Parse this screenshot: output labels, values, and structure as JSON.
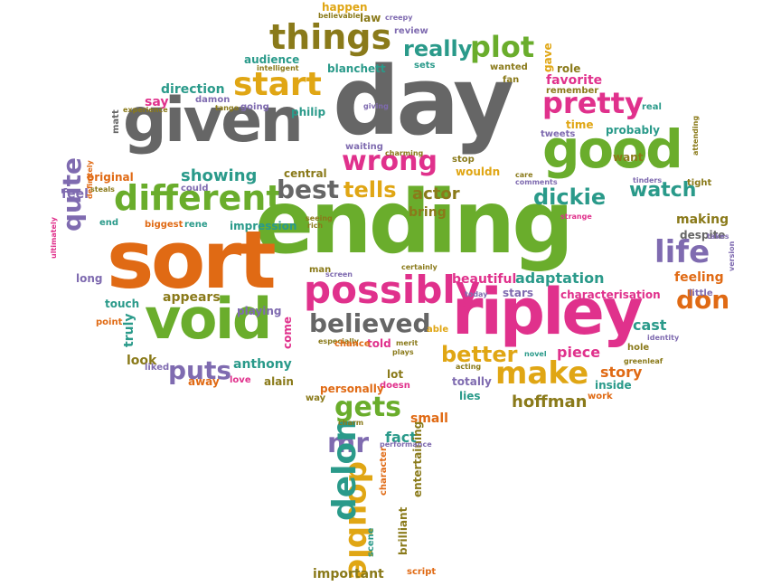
{
  "palette": {
    "grey": "#666666",
    "green": "#6aad2c",
    "orange": "#e06a14",
    "magenta": "#e0318c",
    "gold": "#e0a614",
    "teal": "#2a9a8a",
    "purple": "#7f6bb0",
    "olive": "#8a7a1a"
  },
  "words": [
    {
      "text": "day",
      "color": "grey"
    },
    {
      "text": "ending",
      "color": "green"
    },
    {
      "text": "sort",
      "color": "orange"
    },
    {
      "text": "given",
      "color": "grey"
    },
    {
      "text": "ripley",
      "color": "magenta"
    },
    {
      "text": "good",
      "color": "green"
    },
    {
      "text": "void",
      "color": "green"
    },
    {
      "text": "possibly",
      "color": "magenta"
    },
    {
      "text": "different",
      "color": "green"
    },
    {
      "text": "things",
      "color": "olive"
    },
    {
      "text": "start",
      "color": "gold"
    },
    {
      "text": "plot",
      "color": "green"
    },
    {
      "text": "really",
      "color": "teal"
    },
    {
      "text": "wrong",
      "color": "magenta"
    },
    {
      "text": "pretty",
      "color": "magenta"
    },
    {
      "text": "make",
      "color": "gold"
    },
    {
      "text": "believed",
      "color": "grey"
    },
    {
      "text": "life",
      "color": "purple"
    },
    {
      "text": "best",
      "color": "grey"
    },
    {
      "text": "tells",
      "color": "gold"
    },
    {
      "text": "dickie",
      "color": "teal"
    },
    {
      "text": "watch",
      "color": "teal"
    },
    {
      "text": "puts",
      "color": "purple"
    },
    {
      "text": "gets",
      "color": "green"
    },
    {
      "text": "mr",
      "color": "purple"
    },
    {
      "text": "double",
      "color": "gold"
    },
    {
      "text": "delon",
      "color": "teal"
    },
    {
      "text": "don",
      "color": "orange"
    },
    {
      "text": "better",
      "color": "gold"
    },
    {
      "text": "showing",
      "color": "teal"
    },
    {
      "text": "actor",
      "color": "olive"
    },
    {
      "text": "quite",
      "color": "purple"
    },
    {
      "text": "hoffman",
      "color": "olive"
    },
    {
      "text": "story",
      "color": "orange"
    },
    {
      "text": "adaptation",
      "color": "teal"
    },
    {
      "text": "beautiful",
      "color": "magenta"
    },
    {
      "text": "favorite",
      "color": "magenta"
    },
    {
      "text": "audience",
      "color": "teal"
    },
    {
      "text": "direction",
      "color": "teal"
    },
    {
      "text": "anthony",
      "color": "teal"
    },
    {
      "text": "cast",
      "color": "teal"
    },
    {
      "text": "piece",
      "color": "magenta"
    },
    {
      "text": "feeling",
      "color": "orange"
    },
    {
      "text": "making",
      "color": "olive"
    },
    {
      "text": "fact",
      "color": "teal"
    },
    {
      "text": "small",
      "color": "orange"
    },
    {
      "text": "appears",
      "color": "olive"
    },
    {
      "text": "feel",
      "color": "purple"
    },
    {
      "text": "bring",
      "color": "olive"
    },
    {
      "text": "happen",
      "color": "gold"
    },
    {
      "text": "wouldn",
      "color": "gold"
    },
    {
      "text": "important",
      "color": "olive"
    },
    {
      "text": "look",
      "color": "olive"
    },
    {
      "text": "say",
      "color": "magenta"
    },
    {
      "text": "damon",
      "color": "purple"
    },
    {
      "text": "blanchett",
      "color": "teal"
    },
    {
      "text": "philip",
      "color": "teal"
    },
    {
      "text": "playing",
      "color": "purple"
    },
    {
      "text": "impression",
      "color": "teal"
    },
    {
      "text": "truly",
      "color": "teal"
    },
    {
      "text": "touch",
      "color": "teal"
    },
    {
      "text": "stars",
      "color": "purple"
    },
    {
      "text": "characterisation",
      "color": "magenta"
    },
    {
      "text": "lies",
      "color": "teal"
    },
    {
      "text": "totally",
      "color": "purple"
    },
    {
      "text": "inside",
      "color": "teal"
    },
    {
      "text": "despite",
      "color": "grey"
    },
    {
      "text": "want",
      "color": "olive"
    },
    {
      "text": "time",
      "color": "gold"
    },
    {
      "text": "probably",
      "color": "teal"
    },
    {
      "text": "remember",
      "color": "olive"
    },
    {
      "text": "real",
      "color": "teal"
    },
    {
      "text": "role",
      "color": "olive"
    },
    {
      "text": "gave",
      "color": "gold"
    },
    {
      "text": "wanted",
      "color": "olive"
    },
    {
      "text": "review",
      "color": "purple"
    },
    {
      "text": "law",
      "color": "olive"
    },
    {
      "text": "sets",
      "color": "teal"
    },
    {
      "text": "fan",
      "color": "olive"
    },
    {
      "text": "liked",
      "color": "purple"
    },
    {
      "text": "away",
      "color": "orange"
    },
    {
      "text": "love",
      "color": "magenta"
    },
    {
      "text": "alain",
      "color": "olive"
    },
    {
      "text": "lot",
      "color": "olive"
    },
    {
      "text": "doesn",
      "color": "magenta"
    },
    {
      "text": "told",
      "color": "magenta"
    },
    {
      "text": "able",
      "color": "gold"
    },
    {
      "text": "come",
      "color": "magenta"
    },
    {
      "text": "work",
      "color": "orange"
    },
    {
      "text": "long",
      "color": "purple"
    },
    {
      "text": "point",
      "color": "orange"
    },
    {
      "text": "end",
      "color": "teal"
    },
    {
      "text": "biggest",
      "color": "orange"
    },
    {
      "text": "rene",
      "color": "teal"
    },
    {
      "text": "original",
      "color": "orange"
    },
    {
      "text": "going",
      "color": "purple"
    },
    {
      "text": "central",
      "color": "olive"
    },
    {
      "text": "experience",
      "color": "olive"
    },
    {
      "text": "matt",
      "color": "grey"
    },
    {
      "text": "definitely",
      "color": "orange"
    },
    {
      "text": "could",
      "color": "purple"
    },
    {
      "text": "entertaining",
      "color": "olive"
    },
    {
      "text": "brilliant",
      "color": "olive"
    },
    {
      "text": "scene",
      "color": "teal"
    },
    {
      "text": "script",
      "color": "orange"
    },
    {
      "text": "personally",
      "color": "orange"
    },
    {
      "text": "way",
      "color": "olive"
    },
    {
      "text": "performance",
      "color": "purple"
    },
    {
      "text": "character",
      "color": "orange"
    },
    {
      "text": "charm",
      "color": "olive"
    },
    {
      "text": "man",
      "color": "olive"
    },
    {
      "text": "screen",
      "color": "purple"
    },
    {
      "text": "certainly",
      "color": "olive"
    },
    {
      "text": "today",
      "color": "purple"
    },
    {
      "text": "especially",
      "color": "olive"
    },
    {
      "text": "chance",
      "color": "orange"
    },
    {
      "text": "merit",
      "color": "olive"
    },
    {
      "text": "plays",
      "color": "olive"
    },
    {
      "text": "acting",
      "color": "olive"
    },
    {
      "text": "novel",
      "color": "teal"
    },
    {
      "text": "stop",
      "color": "olive"
    },
    {
      "text": "giving",
      "color": "purple"
    },
    {
      "text": "waiting",
      "color": "purple"
    },
    {
      "text": "charming",
      "color": "olive"
    },
    {
      "text": "care",
      "color": "olive"
    },
    {
      "text": "comments",
      "color": "purple"
    },
    {
      "text": "strange",
      "color": "magenta"
    },
    {
      "text": "tweets",
      "color": "purple"
    },
    {
      "text": "hole",
      "color": "olive"
    },
    {
      "text": "identity",
      "color": "purple"
    },
    {
      "text": "greenleaf",
      "color": "olive"
    },
    {
      "text": "little",
      "color": "purple"
    },
    {
      "text": "tight",
      "color": "olive"
    },
    {
      "text": "takes",
      "color": "purple"
    },
    {
      "text": "version",
      "color": "purple"
    },
    {
      "text": "intelligent",
      "color": "olive"
    },
    {
      "text": "tango",
      "color": "olive"
    },
    {
      "text": "steals",
      "color": "olive"
    },
    {
      "text": "believable",
      "color": "olive"
    },
    {
      "text": "creepy",
      "color": "purple"
    },
    {
      "text": "seeing",
      "color": "olive"
    },
    {
      "text": "rich",
      "color": "olive"
    },
    {
      "text": "tinders",
      "color": "purple"
    },
    {
      "text": "ultimately",
      "color": "magenta"
    },
    {
      "text": "attending",
      "color": "olive"
    }
  ]
}
